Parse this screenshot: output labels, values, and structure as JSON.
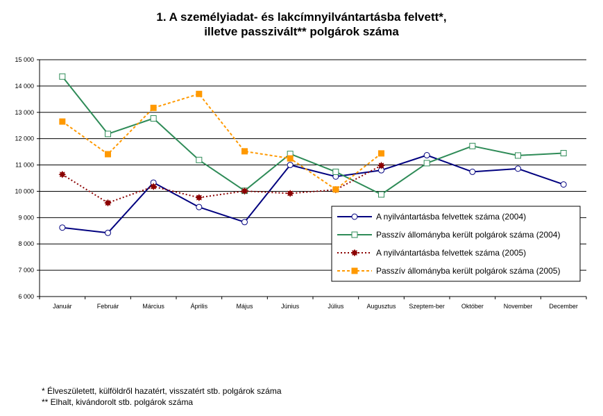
{
  "chart_data": {
    "type": "line",
    "title": "1. A személyiadat- és lakcímnyilvántartásba felvett*,",
    "subtitle": "illetve passzivált** polgárok száma",
    "categories": [
      "Január",
      "Február",
      "Március",
      "Április",
      "Május",
      "Június",
      "Július",
      "Augusztus",
      "Szeptem-ber",
      "Október",
      "November",
      "December"
    ],
    "yticks": [
      "6 000",
      "7 000",
      "8 000",
      "9 000",
      "10 000",
      "11 000",
      "12 000",
      "13 000",
      "14 000",
      "15 000"
    ],
    "ylim": [
      6000,
      15000
    ],
    "grid": true,
    "legend_position": "lower-right",
    "series": [
      {
        "name": "A nyilvántartásba felvettek száma (2004)",
        "color": "#00007f",
        "style": "solid",
        "marker": "circle-open",
        "values": [
          8620,
          8420,
          10330,
          9400,
          8830,
          11000,
          10560,
          10800,
          11370,
          10740,
          10860,
          10260
        ]
      },
      {
        "name": "Passzív állományba került polgárok száma (2004)",
        "color": "#2e8b57",
        "style": "solid",
        "marker": "square-open",
        "values": [
          14360,
          12180,
          12770,
          11190,
          10020,
          11420,
          10740,
          9880,
          11070,
          11720,
          11360,
          11450
        ]
      },
      {
        "name": "A nyilvántartásba felvettek száma (2005)",
        "color": "#8b0000",
        "style": "dotted",
        "marker": "star",
        "values": [
          10640,
          9560,
          10180,
          9760,
          10010,
          9920,
          10060,
          10980,
          null,
          null,
          null,
          null
        ]
      },
      {
        "name": "Passzív állományba került polgárok száma (2005)",
        "color": "#ff9900",
        "style": "dashed",
        "marker": "square-filled",
        "values": [
          12650,
          11410,
          13170,
          13700,
          11520,
          11250,
          10070,
          11440,
          null,
          null,
          null,
          null
        ]
      }
    ]
  },
  "footnotes": [
    "* Élveszületett, külföldről hazatért, visszatért stb. polgárok száma",
    "** Elhalt, kivándorolt stb. polgárok száma"
  ]
}
